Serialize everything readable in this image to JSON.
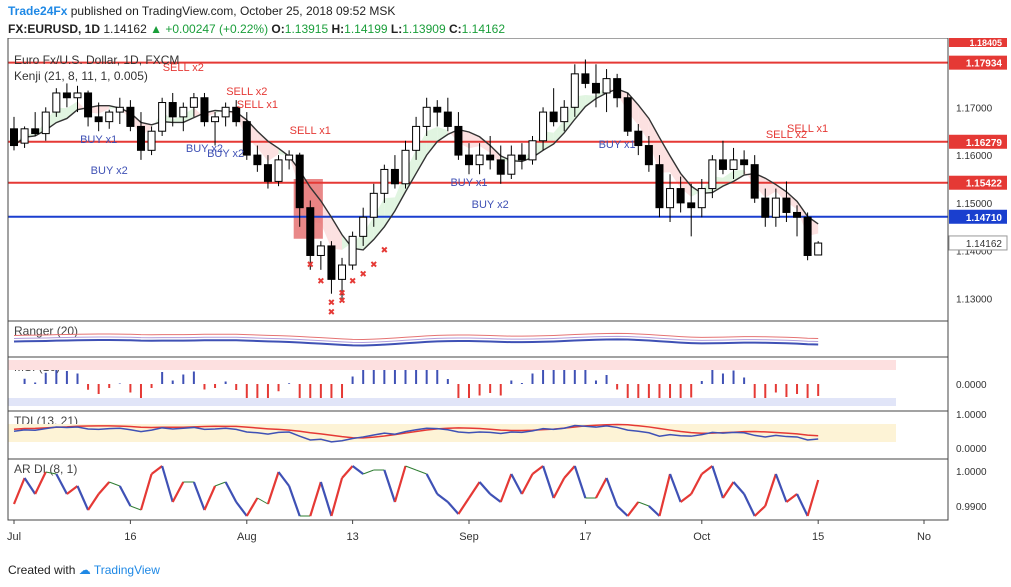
{
  "header": {
    "publisher": "Trade24Fx",
    "published_text": "published on TradingView.com, October 25, 2018 09:52 MSK",
    "symbol": "FX:EURUSD, 1D",
    "last": "1.14162",
    "change": "+0.00247 (+0.22%)",
    "o_label": "O:",
    "o": "1.13915",
    "h_label": "H:",
    "h": "1.14199",
    "l_label": "L:",
    "l": "1.13909",
    "c_label": "C:",
    "c": "1.14162"
  },
  "footer": {
    "created_with": "Created with",
    "brand": "TradingView"
  },
  "chart_data": {
    "type": "candlestick",
    "title": "Euro Fx/U.S. Dollar, 1D, FXCM",
    "indicator_label": "Kenji (21, 8, 11, 1, 0.005)",
    "y_range": [
      1.1255,
      1.1845
    ],
    "price_ticks": [
      "1.13000",
      "1.14000",
      "1.15000",
      "1.16000",
      "1.17000"
    ],
    "x_ticks": [
      "Jul",
      "16",
      "Aug",
      "13",
      "Sep",
      "17",
      "Oct",
      "15",
      "No"
    ],
    "horizontal_levels": [
      {
        "value": 1.17934,
        "label": "1.17934",
        "color": "#e53935"
      },
      {
        "value": 1.16279,
        "label": "1.16279",
        "color": "#e53935"
      },
      {
        "value": 1.15422,
        "label": "1.15422",
        "color": "#e53935"
      },
      {
        "value": 1.1471,
        "label": "1.14710",
        "color": "#1a3fcf"
      }
    ],
    "top_cut_label": "1.18405",
    "last_price_label": "1.14162",
    "candles_ohlc": [
      [
        1.1655,
        1.168,
        1.161,
        1.162
      ],
      [
        1.1625,
        1.166,
        1.1615,
        1.1655
      ],
      [
        1.1655,
        1.169,
        1.164,
        1.1645
      ],
      [
        1.1645,
        1.17,
        1.163,
        1.169
      ],
      [
        1.169,
        1.174,
        1.168,
        1.173
      ],
      [
        1.173,
        1.175,
        1.17,
        1.172
      ],
      [
        1.172,
        1.1745,
        1.169,
        1.173
      ],
      [
        1.173,
        1.1735,
        1.166,
        1.168
      ],
      [
        1.168,
        1.171,
        1.165,
        1.167
      ],
      [
        1.167,
        1.1695,
        1.1655,
        1.169
      ],
      [
        1.169,
        1.172,
        1.1665,
        1.17
      ],
      [
        1.17,
        1.1715,
        1.165,
        1.166
      ],
      [
        1.166,
        1.169,
        1.159,
        1.161
      ],
      [
        1.161,
        1.166,
        1.16,
        1.165
      ],
      [
        1.165,
        1.172,
        1.164,
        1.171
      ],
      [
        1.171,
        1.173,
        1.166,
        1.168
      ],
      [
        1.168,
        1.171,
        1.165,
        1.17
      ],
      [
        1.17,
        1.173,
        1.168,
        1.172
      ],
      [
        1.172,
        1.173,
        1.166,
        1.167
      ],
      [
        1.167,
        1.169,
        1.162,
        1.168
      ],
      [
        1.168,
        1.171,
        1.166,
        1.17
      ],
      [
        1.17,
        1.1715,
        1.166,
        1.167
      ],
      [
        1.167,
        1.169,
        1.159,
        1.16
      ],
      [
        1.16,
        1.162,
        1.1565,
        1.158
      ],
      [
        1.158,
        1.16,
        1.153,
        1.1545
      ],
      [
        1.1545,
        1.16,
        1.1535,
        1.159
      ],
      [
        1.159,
        1.161,
        1.157,
        1.16
      ],
      [
        1.16,
        1.1605,
        1.145,
        1.149
      ],
      [
        1.149,
        1.1505,
        1.136,
        1.139
      ],
      [
        1.139,
        1.142,
        1.136,
        1.141
      ],
      [
        1.141,
        1.142,
        1.131,
        1.134
      ],
      [
        1.134,
        1.1385,
        1.13,
        1.137
      ],
      [
        1.137,
        1.144,
        1.136,
        1.143
      ],
      [
        1.143,
        1.149,
        1.141,
        1.147
      ],
      [
        1.147,
        1.154,
        1.145,
        1.152
      ],
      [
        1.152,
        1.158,
        1.15,
        1.157
      ],
      [
        1.157,
        1.16,
        1.153,
        1.154
      ],
      [
        1.154,
        1.163,
        1.153,
        1.161
      ],
      [
        1.161,
        1.168,
        1.159,
        1.166
      ],
      [
        1.166,
        1.172,
        1.164,
        1.17
      ],
      [
        1.17,
        1.1715,
        1.166,
        1.169
      ],
      [
        1.169,
        1.172,
        1.165,
        1.166
      ],
      [
        1.166,
        1.169,
        1.159,
        1.16
      ],
      [
        1.16,
        1.1625,
        1.156,
        1.158
      ],
      [
        1.158,
        1.1625,
        1.156,
        1.16
      ],
      [
        1.16,
        1.164,
        1.157,
        1.159
      ],
      [
        1.159,
        1.162,
        1.154,
        1.156
      ],
      [
        1.156,
        1.162,
        1.155,
        1.16
      ],
      [
        1.16,
        1.1625,
        1.157,
        1.159
      ],
      [
        1.159,
        1.164,
        1.158,
        1.163
      ],
      [
        1.163,
        1.17,
        1.161,
        1.169
      ],
      [
        1.169,
        1.174,
        1.166,
        1.167
      ],
      [
        1.167,
        1.1715,
        1.165,
        1.17
      ],
      [
        1.17,
        1.179,
        1.168,
        1.177
      ],
      [
        1.177,
        1.18,
        1.174,
        1.175
      ],
      [
        1.175,
        1.179,
        1.17,
        1.173
      ],
      [
        1.173,
        1.178,
        1.169,
        1.176
      ],
      [
        1.176,
        1.177,
        1.17,
        1.172
      ],
      [
        1.172,
        1.173,
        1.164,
        1.165
      ],
      [
        1.165,
        1.1665,
        1.16,
        1.162
      ],
      [
        1.162,
        1.164,
        1.1565,
        1.158
      ],
      [
        1.158,
        1.16,
        1.147,
        1.149
      ],
      [
        1.149,
        1.156,
        1.146,
        1.153
      ],
      [
        1.153,
        1.1555,
        1.148,
        1.15
      ],
      [
        1.15,
        1.154,
        1.143,
        1.149
      ],
      [
        1.149,
        1.155,
        1.147,
        1.153
      ],
      [
        1.153,
        1.16,
        1.151,
        1.159
      ],
      [
        1.159,
        1.163,
        1.156,
        1.157
      ],
      [
        1.157,
        1.1615,
        1.155,
        1.159
      ],
      [
        1.159,
        1.161,
        1.156,
        1.158
      ],
      [
        1.158,
        1.16,
        1.15,
        1.151
      ],
      [
        1.151,
        1.153,
        1.145,
        1.147
      ],
      [
        1.147,
        1.153,
        1.145,
        1.151
      ],
      [
        1.151,
        1.1545,
        1.146,
        1.148
      ],
      [
        1.148,
        1.1495,
        1.143,
        1.147
      ],
      [
        1.147,
        1.148,
        1.138,
        1.139
      ],
      [
        1.1391,
        1.142,
        1.1391,
        1.1416
      ]
    ],
    "signal_labels": [
      {
        "text": "SELL x2",
        "type": "sell"
      },
      {
        "text": "SELL x2",
        "type": "sell"
      },
      {
        "text": "SELL x1",
        "type": "sell"
      },
      {
        "text": "SELL x1",
        "type": "sell"
      },
      {
        "text": "SELL x2",
        "type": "sell"
      },
      {
        "text": "SELL x1",
        "type": "sell"
      },
      {
        "text": "BUY x1",
        "type": "buy"
      },
      {
        "text": "BUY x2",
        "type": "buy"
      },
      {
        "text": "BUY x2",
        "type": "buy"
      },
      {
        "text": "BUY x2",
        "type": "buy"
      },
      {
        "text": "BUY x1",
        "type": "buy"
      },
      {
        "text": "BUY x2",
        "type": "buy"
      },
      {
        "text": "BUY x1",
        "type": "buy"
      }
    ],
    "panels": [
      {
        "name": "Ranger (20)"
      },
      {
        "name": "MSI (10)",
        "tick": "0.0000"
      },
      {
        "name": "TDI (13, 21)",
        "ticks": [
          "1.0000",
          "0.0000"
        ]
      },
      {
        "name": "AR DI (8, 1)",
        "ticks": [
          "1.0000",
          "0.9900"
        ]
      }
    ],
    "colors": {
      "up": "#ffffff",
      "down": "#000000",
      "sell": "#e53935",
      "buy": "#3f51b5",
      "level_red": "#e53935",
      "level_blue": "#1a3fcf",
      "kenji_line": "#333333"
    }
  }
}
